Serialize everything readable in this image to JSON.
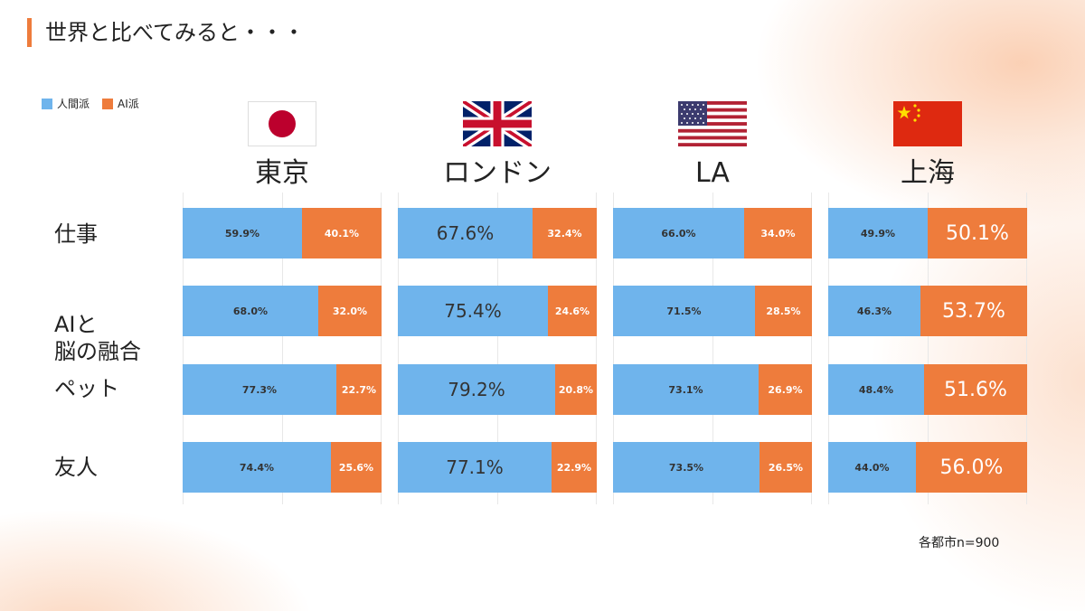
{
  "title": "世界と比べてみると・・・",
  "legend": [
    {
      "label": "人間派",
      "color": "#6fb4ec"
    },
    {
      "label": "AI派",
      "color": "#ee7c3c"
    }
  ],
  "note": "各都市n=900",
  "chart_data": {
    "type": "bar",
    "orientation": "horizontal-stacked-100",
    "categories": [
      "仕事",
      "AIと\n脳の融合",
      "ペット",
      "友人"
    ],
    "panels": [
      {
        "city": "東京",
        "flag": "japan-flag-icon",
        "series": [
          {
            "name": "人間派",
            "values": [
              59.9,
              68.0,
              77.3,
              74.4
            ],
            "labels": [
              "59.9%",
              "68.0%",
              "77.3%",
              "74.4%"
            ]
          },
          {
            "name": "AI派",
            "values": [
              40.1,
              32.0,
              22.7,
              25.6
            ],
            "labels": [
              "40.1%",
              "32.0%",
              "22.7%",
              "25.6%"
            ]
          }
        ]
      },
      {
        "city": "ロンドン",
        "flag": "uk-flag-icon",
        "series": [
          {
            "name": "人間派",
            "values": [
              67.6,
              75.4,
              79.2,
              77.1
            ],
            "labels": [
              "67.6%",
              "75.4%",
              "79.2%",
              "77.1%"
            ]
          },
          {
            "name": "AI派",
            "values": [
              32.4,
              24.6,
              20.8,
              22.9
            ],
            "labels": [
              "32.4%",
              "24.6%",
              "20.8%",
              "22.9%"
            ]
          }
        ]
      },
      {
        "city": "LA",
        "flag": "usa-flag-icon",
        "series": [
          {
            "name": "人間派",
            "values": [
              66.0,
              71.5,
              73.1,
              73.5
            ],
            "labels": [
              "66.0%",
              "71.5%",
              "73.1%",
              "73.5%"
            ]
          },
          {
            "name": "AI派",
            "values": [
              34.0,
              28.5,
              26.9,
              26.5
            ],
            "labels": [
              "34.0%",
              "28.5%",
              "26.9%",
              "26.5%"
            ]
          }
        ]
      },
      {
        "city": "上海",
        "flag": "china-flag-icon",
        "series": [
          {
            "name": "人間派",
            "values": [
              49.9,
              46.3,
              48.4,
              44.0
            ],
            "labels": [
              "49.9%",
              "46.3%",
              "48.4%",
              "44.0%"
            ]
          },
          {
            "name": "AI派",
            "values": [
              50.1,
              53.7,
              51.6,
              56.0
            ],
            "labels": [
              "50.1%",
              "53.7%",
              "51.6%",
              "56.0%"
            ]
          }
        ]
      }
    ],
    "xlim": [
      0,
      100
    ],
    "grid": true,
    "legend_position": "top-left"
  }
}
